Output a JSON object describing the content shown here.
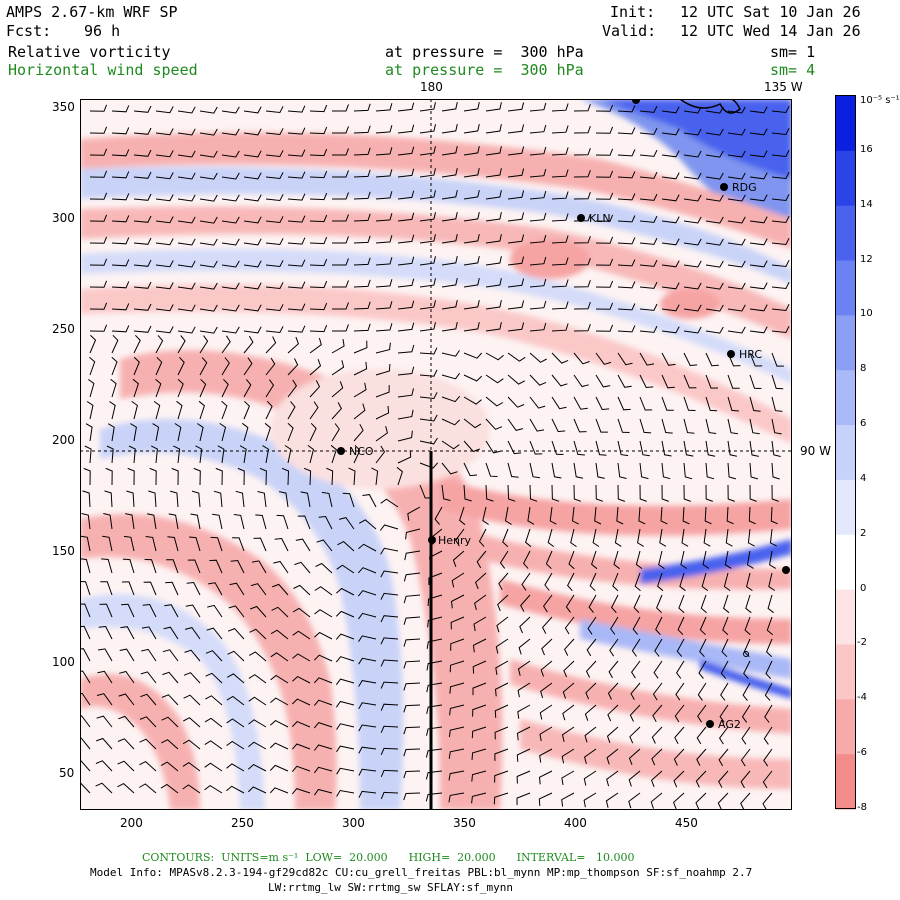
{
  "header": {
    "model": "AMPS 2.67-km WRF SP",
    "fcst_label": "Fcst:",
    "fcst_value": "96 h",
    "init_label": "Init:",
    "init_value": "12 UTC Sat 10 Jan 26",
    "valid_label": "Valid:",
    "valid_value": "12 UTC Wed 14 Jan 26"
  },
  "fields": [
    {
      "name": "Relative vorticity",
      "level": "at pressure =  300 hPa",
      "sm": "sm= 1",
      "color": "#000000"
    },
    {
      "name": "Horizontal wind speed",
      "level": "at pressure =  300 hPa",
      "sm": "sm= 4",
      "color": "#1f8a1f"
    }
  ],
  "map": {
    "meridian_label_top": "180",
    "meridian_label_right_top": "135 W",
    "meridian_label_right": "90 W",
    "x_ticks": [
      "200",
      "250",
      "300",
      "350",
      "400",
      "450"
    ],
    "y_ticks": [
      "350",
      "300",
      "250",
      "200",
      "150",
      "100",
      "50"
    ],
    "stations": [
      {
        "name": "RDG"
      },
      {
        "name": "KLN"
      },
      {
        "name": "HRC"
      },
      {
        "name": "NCO"
      },
      {
        "name": "Henry"
      },
      {
        "name": "AG2"
      }
    ]
  },
  "colorbar": {
    "units": "10⁻⁵ s⁻¹",
    "ticks": [
      "16",
      "14",
      "12",
      "10",
      "8",
      "6",
      "4",
      "2",
      "0",
      "-2",
      "-4",
      "-6",
      "-8"
    ],
    "colors": [
      "#0b1fe0",
      "#2a44e8",
      "#4a62ee",
      "#6b82f2",
      "#8b9ff5",
      "#aab9f8",
      "#c7d2fa",
      "#e3e8fd",
      "#ffffff",
      "#fde3e3",
      "#fbc6c6",
      "#f8a9a9",
      "#f48b8b"
    ]
  },
  "footer": {
    "contours": "CONTOURS:  UNITS=m s⁻¹  LOW=  20.000      HIGH=  20.000      INTERVAL=   10.000",
    "model_info": "Model Info: MPASv8.2.3-194-gf29cd82c CU:cu_grell_freitas PBL:bl_mynn MP:mp_thompson SF:sf_noahmp 2.7",
    "model_info2": "LW:rrtmg_lw SW:rrtmg_sw SFLAY:sf_mynn"
  }
}
